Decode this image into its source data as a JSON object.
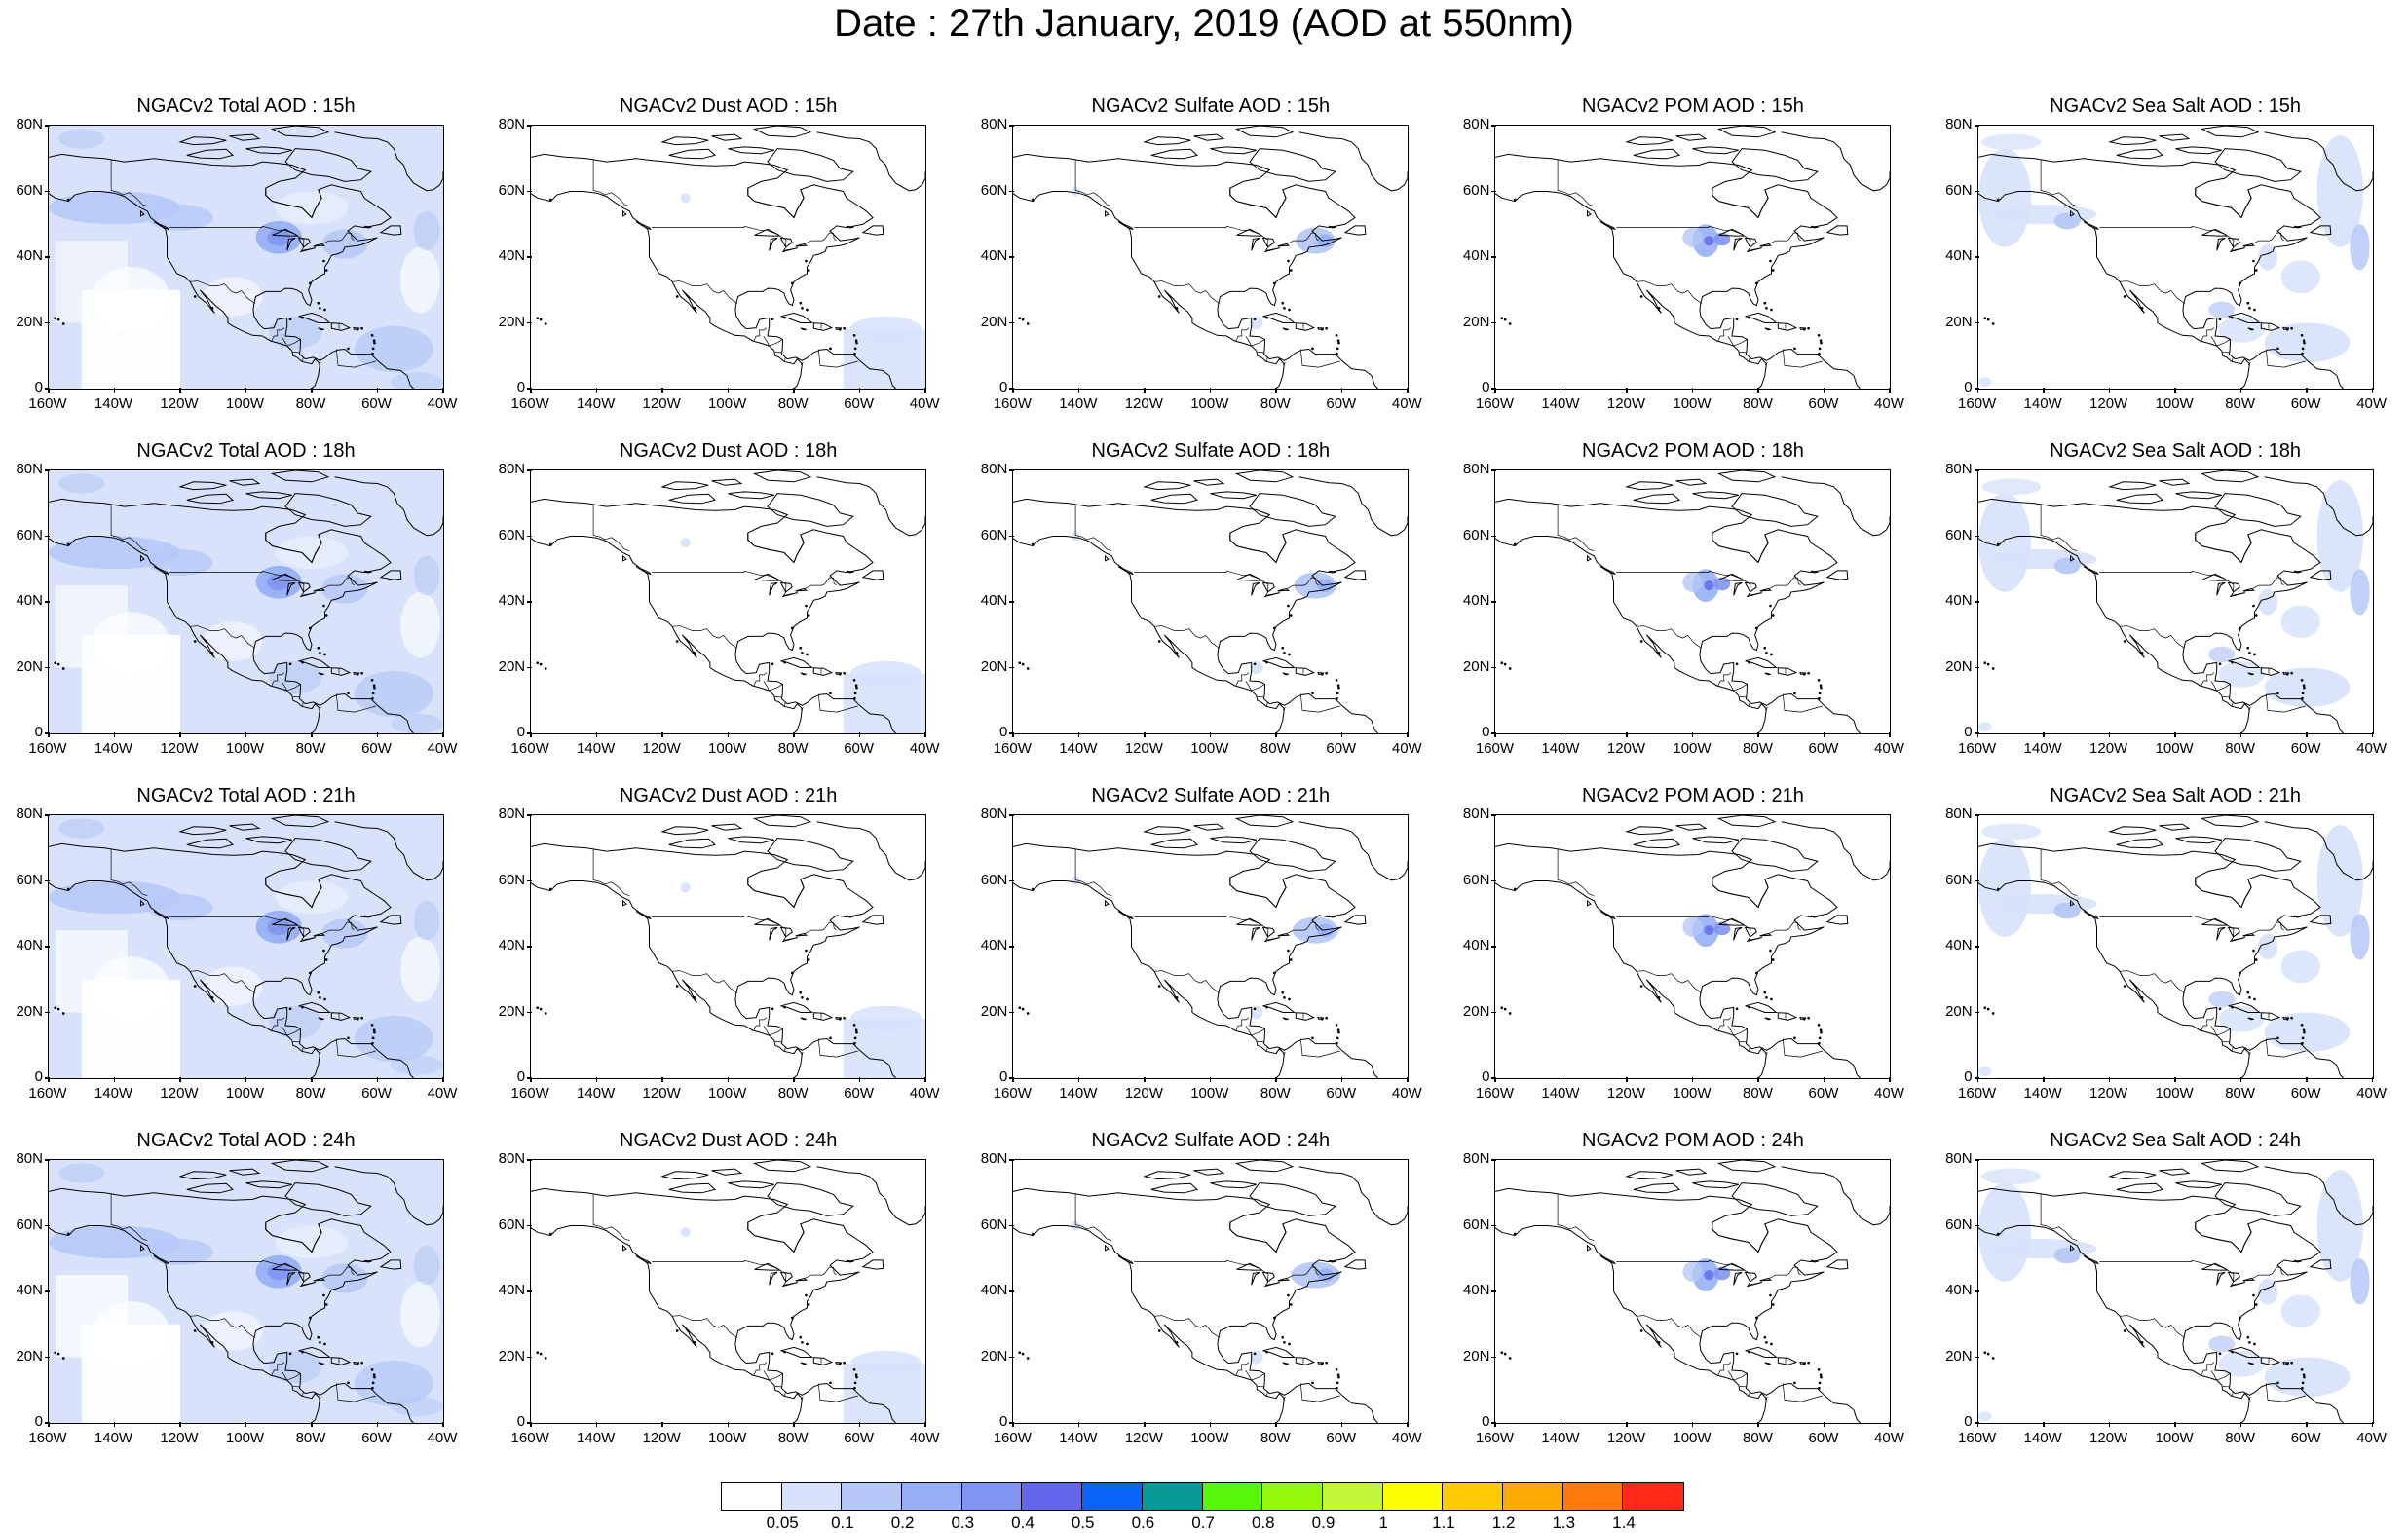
{
  "title": "Date : 27th January, 2019 (AOD at 550nm)",
  "x_ticks": [
    "160W",
    "140W",
    "120W",
    "100W",
    "80W",
    "60W",
    "40W"
  ],
  "y_ticks": [
    "80N",
    "60N",
    "40N",
    "20N",
    "0"
  ],
  "rows": [
    {
      "hour": "15h",
      "panels": [
        {
          "title": "NGACv2 Total AOD : 15h",
          "species": "total"
        },
        {
          "title": "NGACv2 Dust AOD : 15h",
          "species": "dust"
        },
        {
          "title": "NGACv2 Sulfate AOD : 15h",
          "species": "sulfate"
        },
        {
          "title": "NGACv2 POM AOD : 15h",
          "species": "pom"
        },
        {
          "title": "NGACv2 Sea Salt AOD : 15h",
          "species": "seasalt"
        }
      ]
    },
    {
      "hour": "18h",
      "panels": [
        {
          "title": "NGACv2 Total AOD : 18h",
          "species": "total"
        },
        {
          "title": "NGACv2 Dust AOD : 18h",
          "species": "dust"
        },
        {
          "title": "NGACv2 Sulfate AOD : 18h",
          "species": "sulfate"
        },
        {
          "title": "NGACv2 POM AOD : 18h",
          "species": "pom"
        },
        {
          "title": "NGACv2 Sea Salt AOD : 18h",
          "species": "seasalt"
        }
      ]
    },
    {
      "hour": "21h",
      "panels": [
        {
          "title": "NGACv2 Total AOD : 21h",
          "species": "total"
        },
        {
          "title": "NGACv2 Dust AOD : 21h",
          "species": "dust"
        },
        {
          "title": "NGACv2 Sulfate AOD : 21h",
          "species": "sulfate"
        },
        {
          "title": "NGACv2 POM AOD : 21h",
          "species": "pom"
        },
        {
          "title": "NGACv2 Sea Salt AOD : 21h",
          "species": "seasalt"
        }
      ]
    },
    {
      "hour": "24h",
      "panels": [
        {
          "title": "NGACv2 Total AOD : 24h",
          "species": "total"
        },
        {
          "title": "NGACv2 Dust AOD : 24h",
          "species": "dust"
        },
        {
          "title": "NGACv2 Sulfate AOD : 24h",
          "species": "sulfate"
        },
        {
          "title": "NGACv2 POM AOD : 24h",
          "species": "pom"
        },
        {
          "title": "NGACv2 Sea Salt  AOD : 24h",
          "species": "seasalt"
        }
      ]
    }
  ],
  "colorbar": {
    "colors": [
      "#ffffff",
      "#d6e2fb",
      "#b6c8f7",
      "#97b0f5",
      "#7f95f1",
      "#6466ec",
      "#0a64f8",
      "#0a9a96",
      "#58f70a",
      "#95f70a",
      "#c5f53a",
      "#ffff00",
      "#ffcb05",
      "#ffa905",
      "#ff7a0a",
      "#ff2a1a"
    ],
    "labels": [
      "0.05",
      "0.1",
      "0.2",
      "0.3",
      "0.4",
      "0.5",
      "0.6",
      "0.7",
      "0.8",
      "0.9",
      "1",
      "1.1",
      "1.2",
      "1.3",
      "1.4"
    ]
  },
  "map": {
    "lon_range": [
      -160,
      -40
    ],
    "lat_range": [
      0,
      80
    ],
    "projection": "cylindrical-equidistant",
    "coastlines": true,
    "country_borders": true
  }
}
